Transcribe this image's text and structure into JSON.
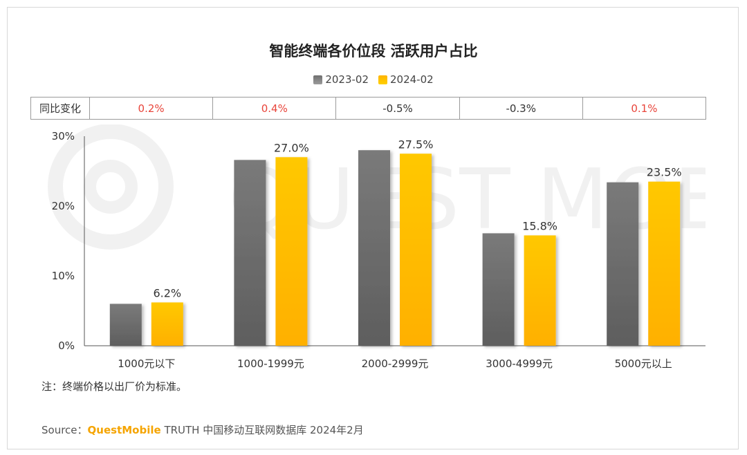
{
  "title": "智能终端各价位段 活跃用户占比",
  "legend": [
    {
      "label": "2023-02",
      "color": "#7a7a7a"
    },
    {
      "label": "2024-02",
      "color": "#ffc000"
    }
  ],
  "yoy": {
    "label": "同比变化",
    "values": [
      "0.2%",
      "0.4%",
      "-0.5%",
      "-0.3%",
      "0.1%"
    ],
    "positive_color": "#e8443a",
    "negative_color": "#333333"
  },
  "chart_data": {
    "type": "bar",
    "categories": [
      "1000元以下",
      "1000-1999元",
      "2000-2999元",
      "3000-4999元",
      "5000元以上"
    ],
    "series": [
      {
        "name": "2023-02",
        "values": [
          6.0,
          26.6,
          28.0,
          16.1,
          23.4
        ],
        "color": "#7a7a7a"
      },
      {
        "name": "2024-02",
        "values": [
          6.2,
          27.0,
          27.5,
          15.8,
          23.5
        ],
        "color": "#ffc000",
        "labels": [
          "6.2%",
          "27.0%",
          "27.5%",
          "15.8%",
          "23.5%"
        ]
      }
    ],
    "yticks": [
      "0%",
      "10%",
      "20%",
      "30%"
    ],
    "ylim": [
      0,
      30
    ],
    "title": "智能终端各价位段 活跃用户占比",
    "legend_position": "top-center",
    "grid": false
  },
  "note": "注：终端价格以出厂价为标准。",
  "source": {
    "prefix": "Source：",
    "brand": "QuestMobile",
    "rest": " TRUTH 中国移动互联网数据库 2024年2月"
  }
}
